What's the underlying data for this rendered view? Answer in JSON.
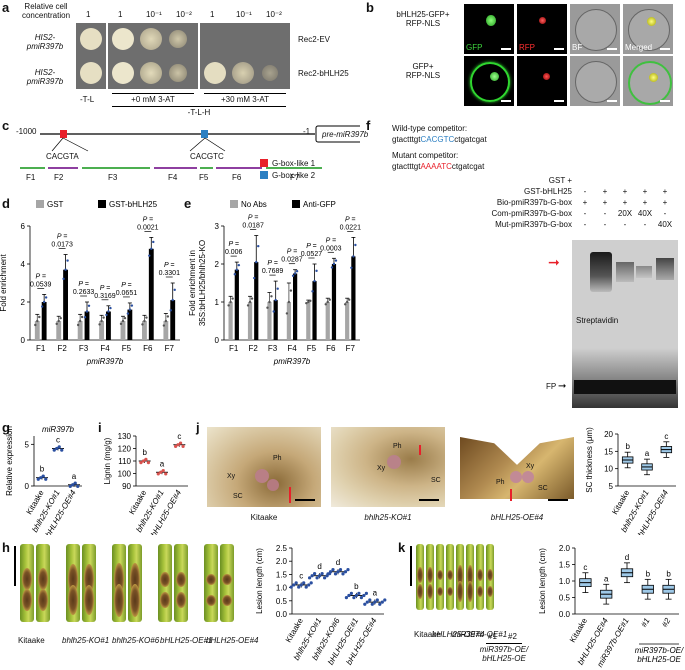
{
  "panels": {
    "a": "a",
    "b": "b",
    "c": "c",
    "d": "d",
    "e": "e",
    "f": "f",
    "g": "g",
    "h": "h",
    "i": "i",
    "j": "j",
    "k": "k"
  },
  "panel_a": {
    "header_label": "Relative cell\nconcentration",
    "cols": [
      "1",
      "1",
      "10⁻¹",
      "10⁻²",
      "1",
      "10⁻¹",
      "10⁻²"
    ],
    "rows": [
      {
        "strain": "HIS2-\npmiR397b",
        "construct": "Rec2-EV"
      },
      {
        "strain": "HIS2-\npmiR397b",
        "construct": "Rec2-bHLH25"
      }
    ],
    "media_left": "-T-L",
    "media_mid": "+0 mM 3-AT",
    "media_right": "+30 mM 3-AT",
    "media_bottom": "-T-L-H"
  },
  "panel_b": {
    "rows": [
      "bHLH25-GFP+\nRFP-NLS",
      "GFP+\nRFP-NLS"
    ],
    "channels": [
      "GFP",
      "RFP",
      "BF",
      "Merged"
    ]
  },
  "panel_c": {
    "start": "-1000",
    "end": "-1",
    "gene": "pre-miR397b",
    "motif1": "CACGTA",
    "motif2": "CACGTC",
    "fragments": [
      "F1",
      "F2",
      "F3",
      "F4",
      "F5",
      "F6",
      "F7"
    ],
    "legend": [
      "G-box-like 1",
      "G-box-like 2"
    ],
    "colors": {
      "gbox1": "#e8202a",
      "gbox2": "#2b7fc2",
      "green": "#4caf50",
      "purple": "#8e3fa0"
    }
  },
  "chart_data": [
    {
      "id": "d",
      "type": "bar",
      "categories": [
        "F1",
        "F2",
        "F3",
        "F4",
        "F5",
        "F6",
        "F7"
      ],
      "series": [
        {
          "name": "GST",
          "values": [
            1.0,
            1.0,
            1.0,
            1.0,
            1.0,
            1.0,
            1.0
          ],
          "err": [
            0.35,
            0.25,
            0.35,
            0.3,
            0.25,
            0.3,
            0.4
          ]
        },
        {
          "name": "GST-bHLH25",
          "values": [
            2.0,
            3.7,
            1.5,
            1.5,
            1.6,
            4.8,
            2.1
          ],
          "err": [
            0.4,
            0.8,
            0.5,
            0.3,
            0.35,
            0.6,
            0.9
          ]
        }
      ],
      "pvalues": [
        "0.0539",
        "0.0173",
        "0.2633",
        "0.3169",
        "0.0651",
        "0.0021",
        "0.3301"
      ],
      "ylabel": "Fold enrichment",
      "xlabel": "pmiR397b",
      "ylim": [
        0,
        6
      ],
      "yticks": [
        "0",
        "2",
        "4",
        "6"
      ],
      "colors": [
        "#a6a6a6",
        "#000000"
      ]
    },
    {
      "id": "e",
      "type": "bar",
      "categories": [
        "F1",
        "F2",
        "F3",
        "F4",
        "F5",
        "F6",
        "F7"
      ],
      "series": [
        {
          "name": "No Abs",
          "values": [
            1.0,
            1.0,
            1.0,
            1.0,
            1.0,
            1.0,
            1.0
          ],
          "err": [
            0.15,
            0.15,
            0.25,
            0.5,
            0.05,
            0.1,
            0.1
          ]
        },
        {
          "name": "Anti-GFP",
          "values": [
            1.85,
            2.05,
            1.05,
            1.75,
            1.55,
            2.0,
            2.2
          ],
          "err": [
            0.2,
            0.7,
            0.5,
            0.1,
            0.45,
            0.15,
            0.5
          ]
        }
      ],
      "pvalues": [
        "0.006",
        "0.0187",
        "0.7689",
        "0.0287",
        "0.0527",
        "0.0003",
        "0.0221"
      ],
      "ylabel": "Fold enrichment in\n35S:bHLH25/bhlh25-KO",
      "xlabel": "pmiR397b",
      "ylim": [
        0,
        3
      ],
      "yticks": [
        "0",
        "1",
        "2",
        "3"
      ],
      "colors": [
        "#a6a6a6",
        "#000000"
      ]
    },
    {
      "id": "g",
      "type": "scatter",
      "title": "miR397b",
      "categories": [
        "Kitaake",
        "bhlh25-KO#1",
        "bHLH25-OE#4"
      ],
      "values": [
        1.0,
        4.5,
        0.15
      ],
      "letters": [
        "b",
        "c",
        "a"
      ],
      "ylabel": "Relative expression",
      "ylim": [
        0,
        6
      ],
      "yticks": [
        "0",
        "5"
      ],
      "colors": [
        "#2a4fa0",
        "#2a4fa0",
        "#2a4fa0"
      ]
    },
    {
      "id": "i",
      "type": "scatter",
      "categories": [
        "Kitaake",
        "bhlh25-KO#1",
        "bHLH25-OE#4"
      ],
      "values": [
        110,
        101,
        123
      ],
      "letters": [
        "b",
        "a",
        "c"
      ],
      "ylabel": "Lignin (mg/g)",
      "ylim": [
        90,
        130
      ],
      "yticks": [
        "90",
        "100",
        "110",
        "120",
        "130"
      ],
      "colors": [
        "#d9534f",
        "#d9534f",
        "#d9534f"
      ]
    },
    {
      "id": "j",
      "type": "box",
      "categories": [
        "Kitaake",
        "bhlh25-KO#1",
        "bHLH25-OE#4"
      ],
      "values": [
        12.5,
        10.5,
        15.5
      ],
      "letters": [
        "b",
        "a",
        "c"
      ],
      "ylabel": "SC thickness (μm)",
      "ylim": [
        5,
        20
      ],
      "yticks": [
        "5",
        "10",
        "15",
        "20"
      ]
    },
    {
      "id": "h",
      "type": "scatter",
      "categories": [
        "Kitaake",
        "bhlh25-KO#1",
        "bhlh25-KO#6",
        "bHLH25-OE#1",
        "bHLH25-OE#4"
      ],
      "values": [
        1.1,
        1.45,
        1.6,
        0.7,
        0.45
      ],
      "letters": [
        "c",
        "d",
        "d",
        "b",
        "a"
      ],
      "ylabel": "Lesion length (cm)",
      "ylim": [
        0,
        2.5
      ],
      "yticks": [
        "0.0",
        "0.5",
        "1.0",
        "1.5",
        "2.0",
        "2.5"
      ],
      "colors": [
        "#2a4fa0",
        "#2a4fa0",
        "#2a4fa0",
        "#2a4fa0",
        "#2a4fa0"
      ]
    },
    {
      "id": "k",
      "type": "box",
      "categories": [
        "Kitaake",
        "bHLH25-OE#4",
        "miR397b-OE#1",
        "#1",
        "#2"
      ],
      "group_label": "miR397b-OE/\nbHLH25-OE",
      "values": [
        0.95,
        0.6,
        1.25,
        0.75,
        0.75
      ],
      "letters": [
        "c",
        "a",
        "d",
        "b",
        "b"
      ],
      "ylabel": "Lesion length (cm)",
      "ylim": [
        0,
        2.0
      ],
      "yticks": [
        "0.0",
        "0.5",
        "1.0",
        "1.5",
        "2.0"
      ]
    }
  ],
  "panel_f": {
    "wt_label": "Wild-type competitor:",
    "wt_seq_a": "gtactttgt",
    "wt_seq_b": "CACGTC",
    "wt_seq_c": "ctgatcgat",
    "mut_label": "Mutant competitor:",
    "mut_seq_a": "gtactttgt",
    "mut_seq_b": "AAAATC",
    "mut_seq_c": "ctgatcgat",
    "rows": [
      {
        "label": "GST +",
        "vals": [
          "",
          "",
          "",
          "",
          ""
        ]
      },
      {
        "label": "GST-bHLH25",
        "vals": [
          "-",
          "+",
          "+",
          "+",
          "+"
        ]
      },
      {
        "label": "Bio-pmiR397b-G-box",
        "vals": [
          "+",
          "+",
          "+",
          "+",
          "+"
        ]
      },
      {
        "label": "Com-pmiR397b-G-box",
        "vals": [
          "-",
          "-",
          "20X",
          "40X",
          "-"
        ]
      },
      {
        "label": "Mut-pmiR397b-G-box",
        "vals": [
          "-",
          "-",
          "-",
          "-",
          "40X"
        ]
      }
    ],
    "streptavidin": "Streptavidin",
    "fp": "FP"
  },
  "panel_j": {
    "labels": [
      "Kitaake",
      "bhlh25-KO#1",
      "bHLH25-OE#4"
    ],
    "tissue": [
      "Ph",
      "Xy",
      "SC"
    ]
  },
  "panel_h": {
    "leaves": [
      "Kitaake",
      "bhlh25-KO#1",
      "bhlh25-KO#6",
      "bHLH25-OE#1",
      "bHLH25-OE#4"
    ]
  },
  "panel_k": {
    "leaves": [
      "Kitaake",
      "bHLH25-OE#4",
      "miR397b-OE#1",
      "#1",
      "#2"
    ],
    "group": "miR397b-OE/\nbHLH25-OE"
  }
}
